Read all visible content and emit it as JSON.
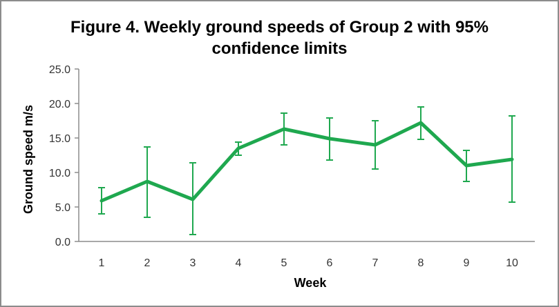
{
  "chart_data": {
    "type": "line",
    "title": "Figure 4. Weekly ground speeds of Group 2 with 95% confidence limits",
    "title_lines": [
      "Figure 4. Weekly ground speeds of Group 2 with 95%",
      "confidence limits"
    ],
    "xlabel": "Week",
    "ylabel": "Ground speed m/s",
    "categories": [
      "1",
      "2",
      "3",
      "4",
      "5",
      "6",
      "7",
      "8",
      "9",
      "10"
    ],
    "series": [
      {
        "name": "Group 2",
        "color": "#1fa84f",
        "values": [
          5.9,
          8.7,
          6.1,
          13.5,
          16.3,
          14.9,
          14.0,
          17.2,
          11.0,
          11.9
        ],
        "error_lower": [
          4.0,
          3.5,
          1.0,
          12.5,
          14.0,
          11.8,
          10.5,
          14.8,
          8.7,
          5.7
        ],
        "error_upper": [
          7.8,
          13.7,
          11.4,
          14.4,
          18.6,
          17.9,
          17.5,
          19.5,
          13.2,
          18.2
        ]
      }
    ],
    "ylim": [
      0,
      25
    ],
    "yticks": [
      "0.0",
      "5.0",
      "10.0",
      "15.0",
      "20.0",
      "25.0"
    ],
    "grid": false,
    "legend": "none"
  }
}
